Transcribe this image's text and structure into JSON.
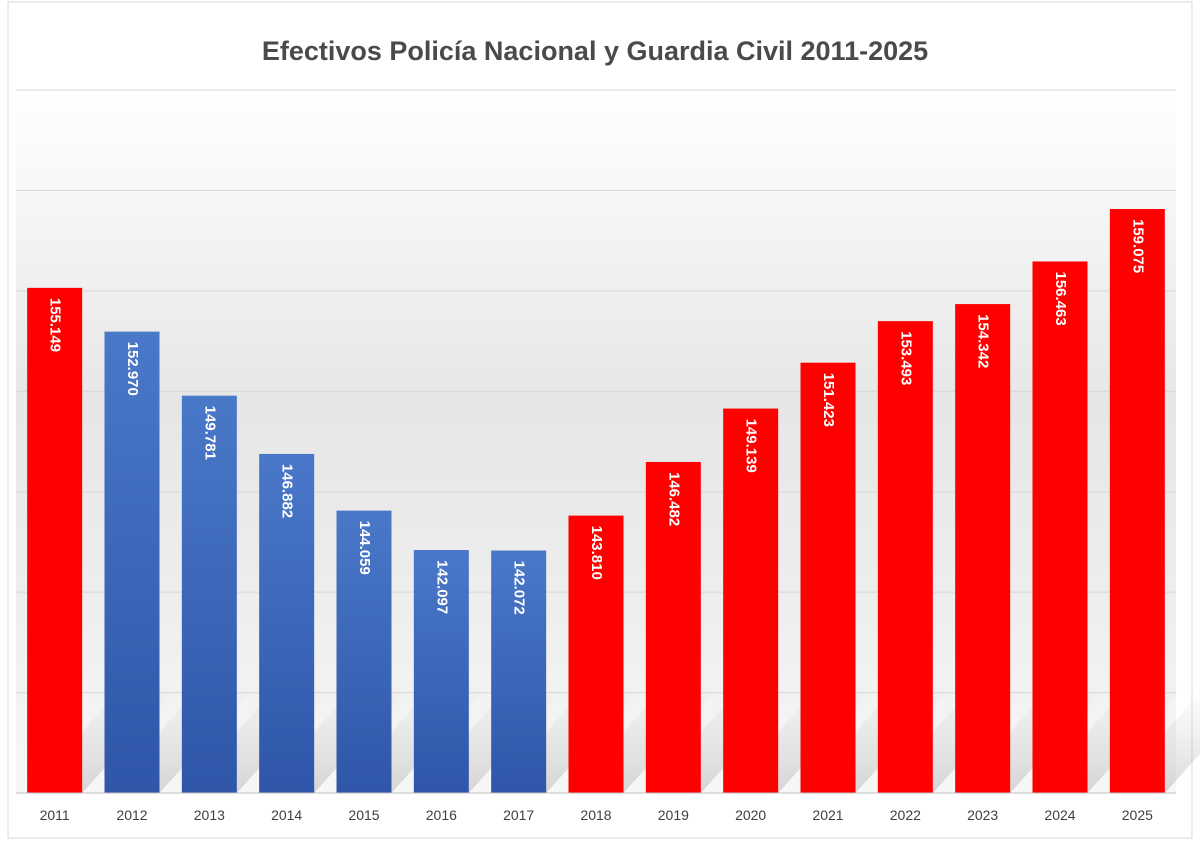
{
  "colors": {
    "red": "#ff0000",
    "blue": "#4472c4",
    "title": "#4a4a4a",
    "grid": "#d6d6d6",
    "data_label": "#ffffff"
  },
  "chart_data": {
    "type": "bar",
    "title": "Efectivos Policía Nacional y Guardia Civil 2011-2025",
    "xlabel": "",
    "ylabel": "",
    "categories": [
      "2011",
      "2012",
      "2013",
      "2014",
      "2015",
      "2016",
      "2017",
      "2018",
      "2019",
      "2020",
      "2021",
      "2022",
      "2023",
      "2024",
      "2025"
    ],
    "values": [
      155149,
      152970,
      149781,
      146882,
      144059,
      142097,
      142072,
      143810,
      146482,
      149139,
      151423,
      153493,
      154342,
      156463,
      159075
    ],
    "value_labels": [
      "155.149",
      "152.970",
      "149.781",
      "146.882",
      "144.059",
      "142.097",
      "142.072",
      "143.810",
      "146.482",
      "149.139",
      "151.423",
      "153.493",
      "154.342",
      "156.463",
      "159.075"
    ],
    "bar_colors": [
      "red",
      "blue",
      "blue",
      "blue",
      "blue",
      "blue",
      "blue",
      "red",
      "red",
      "red",
      "red",
      "red",
      "red",
      "red",
      "red"
    ],
    "ylim": [
      130000,
      165000
    ],
    "y_gridlines": [
      130000,
      135000,
      140000,
      145000,
      150000,
      155000,
      160000,
      165000
    ],
    "y_tick_labels_shown": false,
    "grid": true,
    "legend": "none",
    "data_label_orientation": "vertical"
  }
}
